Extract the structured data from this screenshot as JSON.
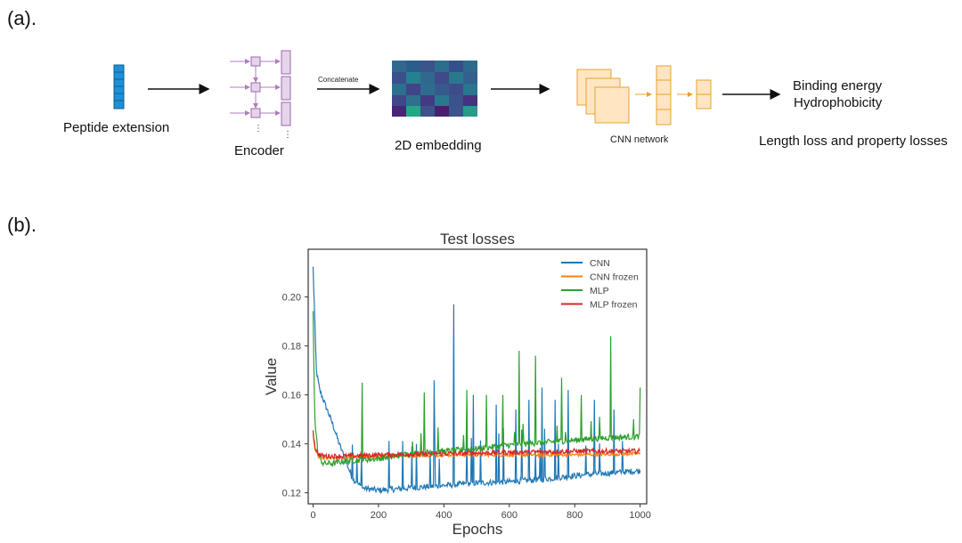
{
  "panel_a": {
    "label": "(a).",
    "peptide_label": "Peptide extension",
    "encoder_label": "Encoder",
    "concat_label": "Concatenate",
    "embedding_label": "2D embedding",
    "cnn_label": "CNN network",
    "output_line1": "Binding energy",
    "output_line2": "Hydrophobicity",
    "loss_label": "Length loss and property losses",
    "colors": {
      "peptide": "#1e90d8",
      "encoder": "#e6d4ea",
      "encoder_stroke": "#9b6aa8",
      "cnn_fill": "#ffe5c2",
      "cnn_stroke": "#e8a22d"
    }
  },
  "panel_b": {
    "label": "(b)."
  },
  "chart_data": {
    "type": "line",
    "title": "Test losses",
    "xlabel": "Epochs",
    "ylabel": "Value",
    "xlim": [
      -15,
      1020
    ],
    "ylim": [
      0.1155,
      0.2195
    ],
    "xticks": [
      0,
      200,
      400,
      600,
      800,
      1000
    ],
    "yticks": [
      0.12,
      0.14,
      0.16,
      0.18,
      0.2
    ],
    "ytick_labels": [
      "0.12",
      "0.14",
      "0.16",
      "0.18",
      "0.20"
    ],
    "legend_position": "top-right",
    "grid": false,
    "series": [
      {
        "name": "CNN",
        "color": "#1f77b4",
        "x": [
          0,
          10,
          20,
          40,
          60,
          80,
          100,
          120,
          150,
          200,
          250,
          300,
          400,
          500,
          600,
          700,
          800,
          900,
          1000
        ],
        "values": [
          0.212,
          0.17,
          0.162,
          0.155,
          0.148,
          0.14,
          0.133,
          0.126,
          0.122,
          0.121,
          0.1215,
          0.122,
          0.123,
          0.124,
          0.1245,
          0.1255,
          0.127,
          0.128,
          0.129
        ],
        "spikes": [
          [
            430,
            0.197
          ],
          [
            370,
            0.166
          ],
          [
            490,
            0.16
          ],
          [
            560,
            0.156
          ],
          [
            620,
            0.154
          ],
          [
            660,
            0.158
          ],
          [
            700,
            0.163
          ],
          [
            740,
            0.158
          ],
          [
            780,
            0.162
          ],
          [
            860,
            0.158
          ],
          [
            920,
            0.154
          ]
        ]
      },
      {
        "name": "CNN frozen",
        "color": "#ff7f0e",
        "x": [
          0,
          5,
          15,
          30,
          60,
          100,
          200,
          400,
          600,
          800,
          1000
        ],
        "values": [
          0.144,
          0.138,
          0.135,
          0.134,
          0.134,
          0.1345,
          0.135,
          0.1355,
          0.1355,
          0.1355,
          0.136
        ],
        "spikes": []
      },
      {
        "name": "MLP",
        "color": "#2ca02c",
        "x": [
          0,
          5,
          15,
          30,
          60,
          100,
          200,
          300,
          400,
          500,
          600,
          700,
          800,
          900,
          1000
        ],
        "values": [
          0.195,
          0.15,
          0.136,
          0.132,
          0.132,
          0.133,
          0.134,
          0.136,
          0.137,
          0.138,
          0.1395,
          0.1405,
          0.1415,
          0.1425,
          0.143
        ],
        "spikes": [
          [
            630,
            0.178
          ],
          [
            680,
            0.176
          ],
          [
            910,
            0.184
          ],
          [
            1000,
            0.163
          ],
          [
            150,
            0.165
          ],
          [
            340,
            0.161
          ],
          [
            470,
            0.162
          ],
          [
            530,
            0.16
          ],
          [
            580,
            0.16
          ],
          [
            760,
            0.167
          ],
          [
            820,
            0.16
          ]
        ]
      },
      {
        "name": "MLP frozen",
        "color": "#d62728",
        "x": [
          0,
          5,
          15,
          30,
          60,
          100,
          200,
          400,
          600,
          800,
          1000
        ],
        "values": [
          0.146,
          0.139,
          0.136,
          0.135,
          0.135,
          0.135,
          0.1355,
          0.136,
          0.1365,
          0.137,
          0.137
        ],
        "spikes": []
      }
    ]
  }
}
